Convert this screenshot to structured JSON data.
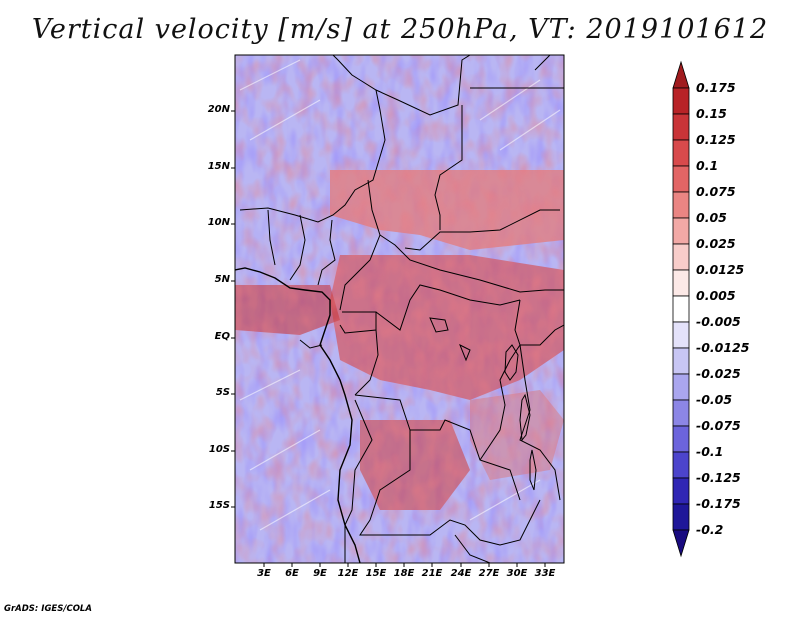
{
  "title": "Vertical velocity [m/s] at 250hPa, VT: 2019101612",
  "credit": "GrADS: IGES/COLA",
  "lat_labels": [
    "20N",
    "15N",
    "10N",
    "5N",
    "EQ",
    "5S",
    "10S",
    "15S"
  ],
  "lon_labels": [
    "3E",
    "6E",
    "9E",
    "12E",
    "15E",
    "18E",
    "21E",
    "24E",
    "27E",
    "30E",
    "33E"
  ],
  "colorbar": {
    "labels": [
      "0.175",
      "0.15",
      "0.125",
      "0.1",
      "0.075",
      "0.05",
      "0.025",
      "0.0125",
      "0.005",
      "-0.005",
      "-0.0125",
      "-0.025",
      "-0.05",
      "-0.075",
      "-0.1",
      "-0.125",
      "-0.175",
      "-0.2"
    ],
    "colors": [
      "#a01b1e",
      "#b82327",
      "#c93438",
      "#d84a4c",
      "#e26565",
      "#ea8583",
      "#f2a9a6",
      "#f8cdca",
      "#fce9e7",
      "#ffffff",
      "#e4e2fa",
      "#c8c6f4",
      "#aaa6ee",
      "#8c86e6",
      "#6c64dc",
      "#4c44cc",
      "#3026b4",
      "#1f1799",
      "#190b80"
    ]
  },
  "colors": {
    "positive_strong": "#c0282c",
    "positive_weak": "#f2b3b0",
    "negative_weak": "#c6c3f5",
    "negative_strong": "#4a42d8",
    "border": "#000000"
  }
}
